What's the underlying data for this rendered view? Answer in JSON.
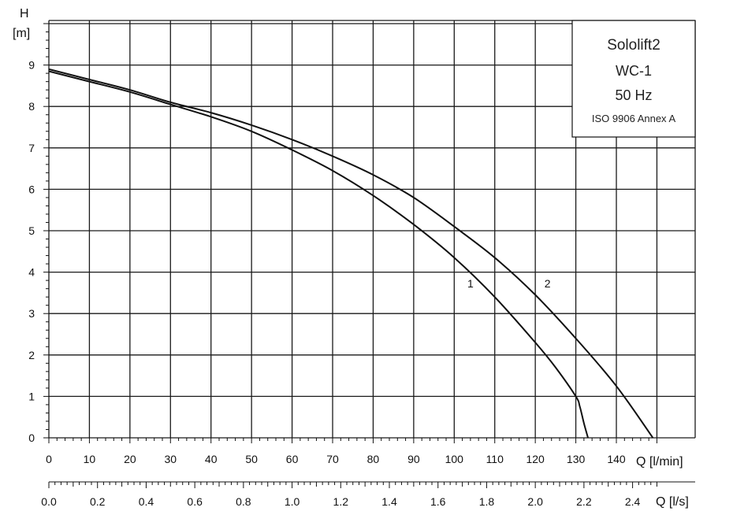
{
  "chart_data": {
    "type": "line",
    "title": "Sololift2",
    "info_box": {
      "model": "Sololift2",
      "variant": "WC-1",
      "frequency": "50 Hz",
      "standard": "ISO 9906 Annex A"
    },
    "y_axis": {
      "symbol": "H",
      "unit": "[m]",
      "ylim": [
        0,
        10
      ],
      "ticks": [
        "0",
        "1",
        "2",
        "3",
        "4",
        "5",
        "6",
        "7",
        "8",
        "9"
      ]
    },
    "x_axis_primary": {
      "label": "Q [l/min]",
      "xlim": [
        0,
        150
      ],
      "ticks": [
        "0",
        "10",
        "20",
        "30",
        "40",
        "50",
        "60",
        "70",
        "80",
        "90",
        "100",
        "110",
        "120",
        "130",
        "140"
      ]
    },
    "x_axis_secondary": {
      "label": "Q [l/s]",
      "ticks": [
        "0.0",
        "0.2",
        "0.4",
        "0.6",
        "0.8",
        "1.0",
        "1.2",
        "1.4",
        "1.6",
        "1.8",
        "2.0",
        "2.2",
        "2.4"
      ]
    },
    "grid": true,
    "series": [
      {
        "name": "1",
        "x": [
          0,
          10,
          20,
          30,
          40,
          50,
          60,
          70,
          80,
          90,
          100,
          110,
          120,
          125,
          130,
          131,
          132,
          133
        ],
        "y": [
          8.85,
          8.6,
          8.35,
          8.05,
          7.75,
          7.4,
          6.95,
          6.45,
          5.85,
          5.15,
          4.35,
          3.4,
          2.3,
          1.7,
          1.0,
          0.75,
          0.35,
          0
        ]
      },
      {
        "name": "2",
        "x": [
          0,
          10,
          20,
          30,
          40,
          50,
          60,
          70,
          80,
          90,
          100,
          110,
          120,
          130,
          140,
          149
        ],
        "y": [
          8.9,
          8.65,
          8.4,
          8.1,
          7.85,
          7.55,
          7.2,
          6.8,
          6.35,
          5.8,
          5.1,
          4.35,
          3.45,
          2.4,
          1.25,
          0
        ]
      }
    ],
    "series_label_positions": [
      {
        "name": "1",
        "x": 104,
        "y": 3.4
      },
      {
        "name": "2",
        "x": 123,
        "y": 3.4
      }
    ]
  }
}
